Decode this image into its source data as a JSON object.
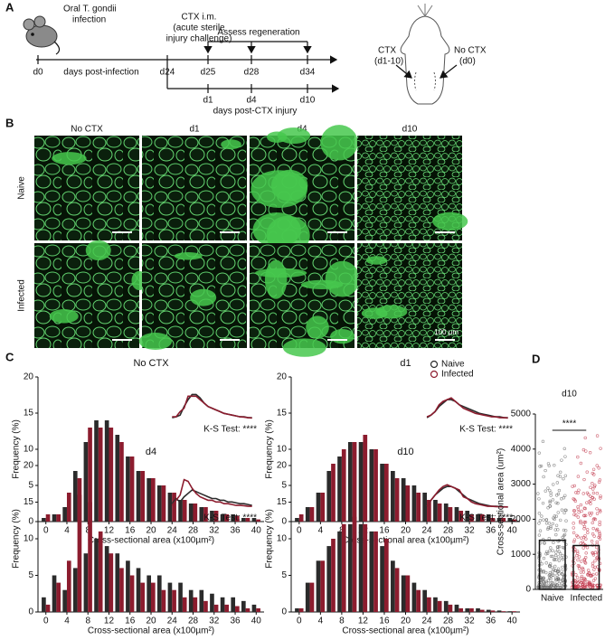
{
  "panel_a": {
    "label": "A",
    "infection": [
      "Oral T. gondii",
      "infection"
    ],
    "ctx": [
      "CTX i.m.",
      "(acute sterile",
      "injury challenge)"
    ],
    "assess": "Assess regeneration",
    "infection_days": [
      "d0",
      "d24",
      "d25",
      "d28",
      "d34"
    ],
    "infection_axis": "days post-infection",
    "ctx_days": [
      "d1",
      "d4",
      "d10"
    ],
    "ctx_axis": "days post-CTX injury",
    "mouse_left": [
      "CTX",
      "(d1-10)"
    ],
    "mouse_right": [
      "No CTX",
      "(d0)"
    ]
  },
  "panel_b": {
    "label": "B",
    "columns": [
      "No CTX",
      "d1",
      "d4",
      "d10"
    ],
    "rows": [
      "Naive",
      "Infected"
    ],
    "scale_bar": "100 μm"
  },
  "panel_c_label": "C",
  "panel_d_label": "D",
  "chart_data": [
    {
      "type": "bar",
      "title": "No CTX",
      "xlabel": "Cross-sectional area (x100µm²)",
      "ylabel": "Frequency (%)",
      "x": [
        0,
        2,
        4,
        6,
        8,
        10,
        12,
        14,
        16,
        18,
        20,
        22,
        24,
        26,
        28,
        30,
        32,
        34,
        36,
        38,
        40
      ],
      "xlim": [
        -1.5,
        41.5
      ],
      "xticks": [
        0,
        4,
        8,
        12,
        16,
        20,
        24,
        28,
        32,
        36,
        40
      ],
      "ylim": [
        0,
        20
      ],
      "yticks": [
        0,
        5,
        10,
        15,
        20
      ],
      "series": [
        {
          "color": "#2b2b2b",
          "values": [
            0.5,
            1,
            2,
            7,
            11,
            14,
            14,
            12,
            9,
            7,
            6,
            5,
            4,
            3,
            2.5,
            2,
            1.5,
            1,
            1,
            0.5,
            0.5
          ]
        },
        {
          "color": "#8c1c2e",
          "values": [
            1,
            1,
            4,
            6,
            13,
            13,
            13,
            11,
            9,
            7,
            6,
            5,
            4,
            3,
            2.5,
            2,
            1.5,
            1,
            0.8,
            0.5,
            0.3
          ]
        }
      ],
      "annotation": "K-S Test: ****"
    },
    {
      "type": "bar",
      "title": "d1",
      "xlabel": "Cross-sectional area (x100µm²)",
      "ylabel": "Frequency (%)",
      "x": [
        0,
        2,
        4,
        6,
        8,
        10,
        12,
        14,
        16,
        18,
        20,
        22,
        24,
        26,
        28,
        30,
        32,
        34,
        36,
        38,
        40
      ],
      "xlim": [
        -1.5,
        41.5
      ],
      "xticks": [
        0,
        4,
        8,
        12,
        16,
        20,
        24,
        28,
        32,
        36,
        40
      ],
      "ylim": [
        0,
        20
      ],
      "yticks": [
        0,
        5,
        10,
        15,
        20
      ],
      "legend": "upper right",
      "series": [
        {
          "name": "Naive",
          "color": "#2b2b2b",
          "values": [
            0.5,
            2,
            4,
            7,
            9,
            11,
            11,
            10,
            8,
            7,
            6,
            5,
            4,
            3,
            2.5,
            2,
            1.5,
            1,
            1,
            0.5,
            0.5
          ]
        },
        {
          "name": "Infected",
          "color": "#8c1c2e",
          "values": [
            1,
            2,
            4,
            8,
            10,
            11,
            12,
            10,
            8,
            6,
            5,
            4,
            3,
            2.5,
            2,
            1.5,
            1,
            1,
            0.5,
            0.5,
            0.3
          ]
        }
      ],
      "annotation": "K-S Test: ****"
    },
    {
      "type": "bar",
      "title": "d4",
      "xlabel": "Cross-sectional area (x100µm²)",
      "ylabel": "Frequency (%)",
      "x": [
        0,
        2,
        4,
        6,
        8,
        10,
        12,
        14,
        16,
        18,
        20,
        22,
        24,
        26,
        28,
        30,
        32,
        34,
        36,
        38,
        40
      ],
      "xlim": [
        -1.5,
        41.5
      ],
      "xticks": [
        0,
        4,
        8,
        12,
        16,
        20,
        24,
        28,
        32,
        36,
        40
      ],
      "ylim": [
        0,
        20
      ],
      "yticks": [
        0,
        5,
        10,
        15,
        20
      ],
      "series": [
        {
          "color": "#2b2b2b",
          "values": [
            2,
            5,
            3,
            6,
            8,
            10,
            9,
            8,
            7,
            6,
            5,
            5,
            4,
            4,
            3,
            3,
            2.5,
            2,
            2,
            1.5,
            1
          ]
        },
        {
          "color": "#8c1c2e",
          "values": [
            1,
            4,
            7,
            16,
            15,
            11,
            8,
            6,
            5,
            4,
            4,
            3,
            3,
            2,
            2,
            1.5,
            1,
            1,
            0.8,
            0.5,
            0.5
          ]
        }
      ],
      "annotation": "K-S Test: ****"
    },
    {
      "type": "bar",
      "title": "d10",
      "xlabel": "Cross-sectional area (x100µm²)",
      "ylabel": "Frequency (%)",
      "x": [
        0,
        2,
        4,
        6,
        8,
        10,
        12,
        14,
        16,
        18,
        20,
        22,
        24,
        26,
        28,
        30,
        32,
        34,
        36,
        38,
        40
      ],
      "xlim": [
        -1.5,
        41.5
      ],
      "xticks": [
        0,
        4,
        8,
        12,
        16,
        20,
        24,
        28,
        32,
        36,
        40
      ],
      "ylim": [
        0,
        20
      ],
      "yticks": [
        0,
        5,
        10,
        15,
        20
      ],
      "series": [
        {
          "color": "#2b2b2b",
          "values": [
            0.5,
            4,
            7,
            9,
            11,
            12,
            12,
            11,
            9,
            7,
            5,
            4,
            3,
            2,
            1.5,
            1,
            0.5,
            0.5,
            0.3,
            0.2,
            0.1
          ]
        },
        {
          "color": "#8c1c2e",
          "values": [
            0.5,
            4,
            7,
            10,
            12,
            13,
            12,
            11,
            10,
            6,
            5,
            3,
            2,
            1.5,
            1,
            0.5,
            0.5,
            0.3,
            0.2,
            0.1,
            0.1
          ]
        }
      ],
      "annotation": "K-S Test: ****"
    },
    {
      "type": "dotbar",
      "title": "d10",
      "ylabel": "Cross-sectional area (um²)",
      "categories": [
        "Naive",
        "Infected"
      ],
      "values": [
        1400,
        1250
      ],
      "point_colors": [
        "#6b6b6b",
        "#c0364a"
      ],
      "ylim": [
        0,
        5000
      ],
      "yticks": [
        0,
        1000,
        2000,
        3000,
        4000,
        5000
      ],
      "annotation": "****"
    }
  ]
}
